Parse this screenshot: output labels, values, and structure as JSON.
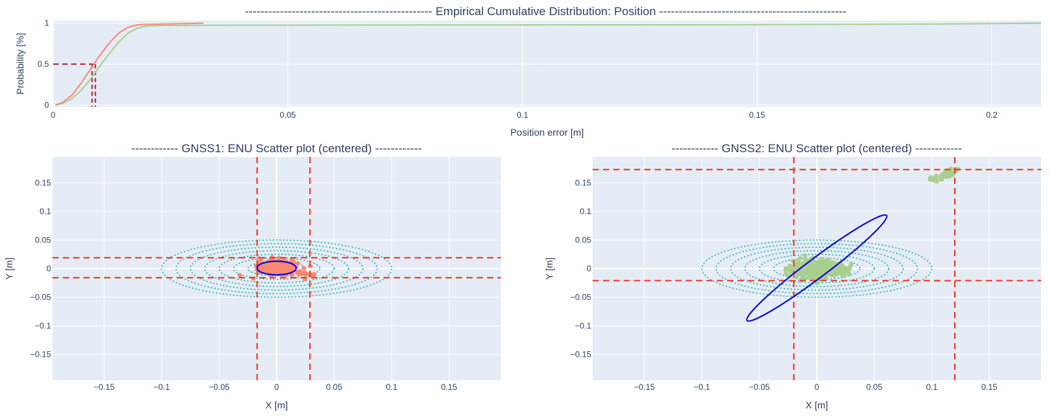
{
  "colors": {
    "plot_bg": "#e5ecf6",
    "grid": "#ffffff",
    "gnss1": "#fa8872",
    "gnss2": "#a9cf8f",
    "guide_dark": "#a52a2a",
    "guide_red": "#ee3322",
    "contour": "#20b2aa",
    "ellipse": "#0000dd"
  },
  "chart_data": [
    {
      "type": "line",
      "title": "------------------------------------------------  Empirical Cumulative Distribution: Position  ------------------------------------------------",
      "xlabel": "Position error [m]",
      "ylabel": "Probability [%]",
      "xlim": [
        0,
        0.2105
      ],
      "ylim": [
        -0.02,
        1.03
      ],
      "xticks": [
        0,
        0.05,
        0.1,
        0.15,
        0.2
      ],
      "xtick_labels": [
        "0",
        "0.05",
        "0.1",
        "0.15",
        "0.2"
      ],
      "yticks": [
        0,
        0.5,
        1
      ],
      "ytick_labels": [
        "0",
        "0.5",
        "1"
      ],
      "grid": true,
      "series": [
        {
          "color": "#fa8872",
          "x": [
            0.0005,
            0.002,
            0.004,
            0.006,
            0.008,
            0.01,
            0.012,
            0.014,
            0.016,
            0.018,
            0.02,
            0.024,
            0.028,
            0.032
          ],
          "y": [
            0.0,
            0.03,
            0.12,
            0.27,
            0.44,
            0.61,
            0.76,
            0.88,
            0.95,
            0.98,
            0.985,
            0.99,
            0.995,
            1.0
          ]
        },
        {
          "color": "#a9cf8f",
          "x": [
            0.0005,
            0.002,
            0.004,
            0.006,
            0.008,
            0.01,
            0.012,
            0.014,
            0.016,
            0.018,
            0.02,
            0.025,
            0.05,
            0.1,
            0.15,
            0.19,
            0.2105
          ],
          "y": [
            0.0,
            0.02,
            0.08,
            0.18,
            0.32,
            0.48,
            0.63,
            0.77,
            0.88,
            0.94,
            0.965,
            0.972,
            0.975,
            0.978,
            0.982,
            0.99,
            1.0
          ]
        }
      ],
      "guides": [
        {
          "color": "#a52a2a",
          "x_from": 0,
          "x_to": 0.0085,
          "y": 0.5,
          "vlines": [
            0.0083,
            0.009
          ]
        }
      ]
    },
    {
      "type": "scatter",
      "title": "------------  GNSS1: ENU Scatter plot (centered)  ------------",
      "xlabel": "X [m]",
      "ylabel": "Y [m]",
      "xlim": [
        -0.195,
        0.195
      ],
      "ylim": [
        -0.195,
        0.195
      ],
      "ticks": [
        -0.15,
        -0.1,
        -0.05,
        0,
        0.05,
        0.1,
        0.15
      ],
      "tick_labels": [
        "−0.15",
        "−0.1",
        "−0.05",
        "0",
        "0.05",
        "0.1",
        "0.15"
      ],
      "grid": true,
      "points": {
        "color": "#fa8872",
        "cluster": {
          "cx": 0.0,
          "cy": 0.002,
          "sx": 0.015,
          "sy": 0.011
        },
        "tail": [
          [
            0.02,
            -0.008
          ],
          [
            0.025,
            -0.01
          ],
          [
            0.03,
            -0.011
          ]
        ]
      },
      "contours": {
        "color": "#20b2aa",
        "center": [
          0,
          0
        ],
        "rx": [
          0.025,
          0.0375,
          0.05,
          0.0625,
          0.075,
          0.0875,
          0.1
        ],
        "ry": [
          0.0125,
          0.01875,
          0.025,
          0.03125,
          0.0375,
          0.04375,
          0.05
        ]
      },
      "ellipse": {
        "color": "#0000dd",
        "center": [
          0.0,
          0.001
        ],
        "rx": 0.017,
        "ry": 0.012,
        "angle_deg": 0
      },
      "guides": {
        "color": "#ee3322",
        "vlines": [
          -0.017,
          0.029
        ],
        "hlines": [
          0.019,
          -0.016
        ]
      }
    },
    {
      "type": "scatter",
      "title": "------------  GNSS2: ENU Scatter plot (centered)  ------------",
      "xlabel": "X [m]",
      "ylabel": "Y [m]",
      "xlim": [
        -0.195,
        0.195
      ],
      "ylim": [
        -0.195,
        0.195
      ],
      "ticks": [
        -0.15,
        -0.1,
        -0.05,
        0,
        0.05,
        0.1,
        0.15
      ],
      "tick_labels": [
        "−0.15",
        "−0.1",
        "−0.05",
        "0",
        "0.05",
        "0.1",
        "0.15"
      ],
      "grid": true,
      "points": {
        "color": "#a9cf8f",
        "cluster": {
          "cx": 0.0,
          "cy": 0.0,
          "sx": 0.022,
          "sy": 0.016
        },
        "tail": [
          [
            0.02,
            -0.006
          ],
          [
            0.025,
            -0.004
          ]
        ],
        "outliers": [
          [
            0.1,
            0.157
          ],
          [
            0.105,
            0.16
          ],
          [
            0.11,
            0.164
          ],
          [
            0.115,
            0.167
          ],
          [
            0.12,
            0.171
          ],
          [
            0.108,
            0.158
          ],
          [
            0.113,
            0.162
          ],
          [
            0.118,
            0.169
          ],
          [
            0.104,
            0.153
          ],
          [
            0.112,
            0.166
          ]
        ]
      },
      "contours": {
        "color": "#20b2aa",
        "center": [
          0,
          0
        ],
        "rx": [
          0.025,
          0.0375,
          0.05,
          0.0625,
          0.075,
          0.0875,
          0.1
        ],
        "ry": [
          0.0125,
          0.01875,
          0.025,
          0.03125,
          0.0375,
          0.04375,
          0.05
        ]
      },
      "ellipse": {
        "color": "#0000dd",
        "center": [
          0.0,
          0.001
        ],
        "rx": 0.076,
        "ry": 0.017,
        "angle_deg": 37
      },
      "guides": {
        "color": "#ee3322",
        "vlines": [
          -0.02,
          0.12
        ],
        "hlines": [
          0.173,
          -0.021
        ]
      }
    }
  ]
}
